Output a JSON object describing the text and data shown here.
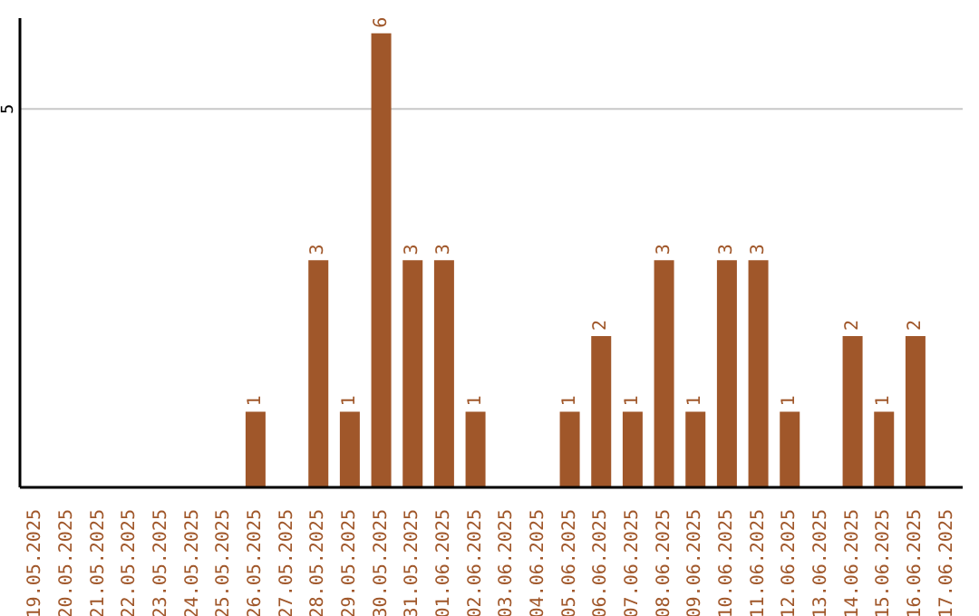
{
  "chart_data": {
    "type": "bar",
    "categories": [
      "19.05.2025",
      "20.05.2025",
      "21.05.2025",
      "22.05.2025",
      "23.05.2025",
      "24.05.2025",
      "25.05.2025",
      "26.05.2025",
      "27.05.2025",
      "28.05.2025",
      "29.05.2025",
      "30.05.2025",
      "31.05.2025",
      "01.06.2025",
      "02.06.2025",
      "03.06.2025",
      "04.06.2025",
      "05.06.2025",
      "06.06.2025",
      "07.06.2025",
      "08.06.2025",
      "09.06.2025",
      "10.06.2025",
      "11.06.2025",
      "12.06.2025",
      "13.06.2025",
      "14.06.2025",
      "15.06.2025",
      "16.06.2025",
      "17.06.2025"
    ],
    "values": [
      0,
      0,
      0,
      0,
      0,
      0,
      0,
      1,
      0,
      3,
      1,
      6,
      3,
      3,
      1,
      0,
      0,
      1,
      2,
      1,
      3,
      1,
      3,
      3,
      1,
      0,
      2,
      1,
      2,
      0
    ],
    "value_labels": [
      null,
      null,
      null,
      null,
      null,
      null,
      null,
      "1",
      null,
      "3",
      "1",
      "6",
      "3",
      "3",
      "1",
      null,
      null,
      "1",
      "2",
      "1",
      "3",
      "1",
      "3",
      "3",
      "1",
      null,
      "2",
      "1",
      "2",
      null
    ],
    "color": "#a0572a",
    "ylim": [
      0,
      6.2
    ],
    "yticks": [
      5
    ],
    "grid": "y"
  }
}
